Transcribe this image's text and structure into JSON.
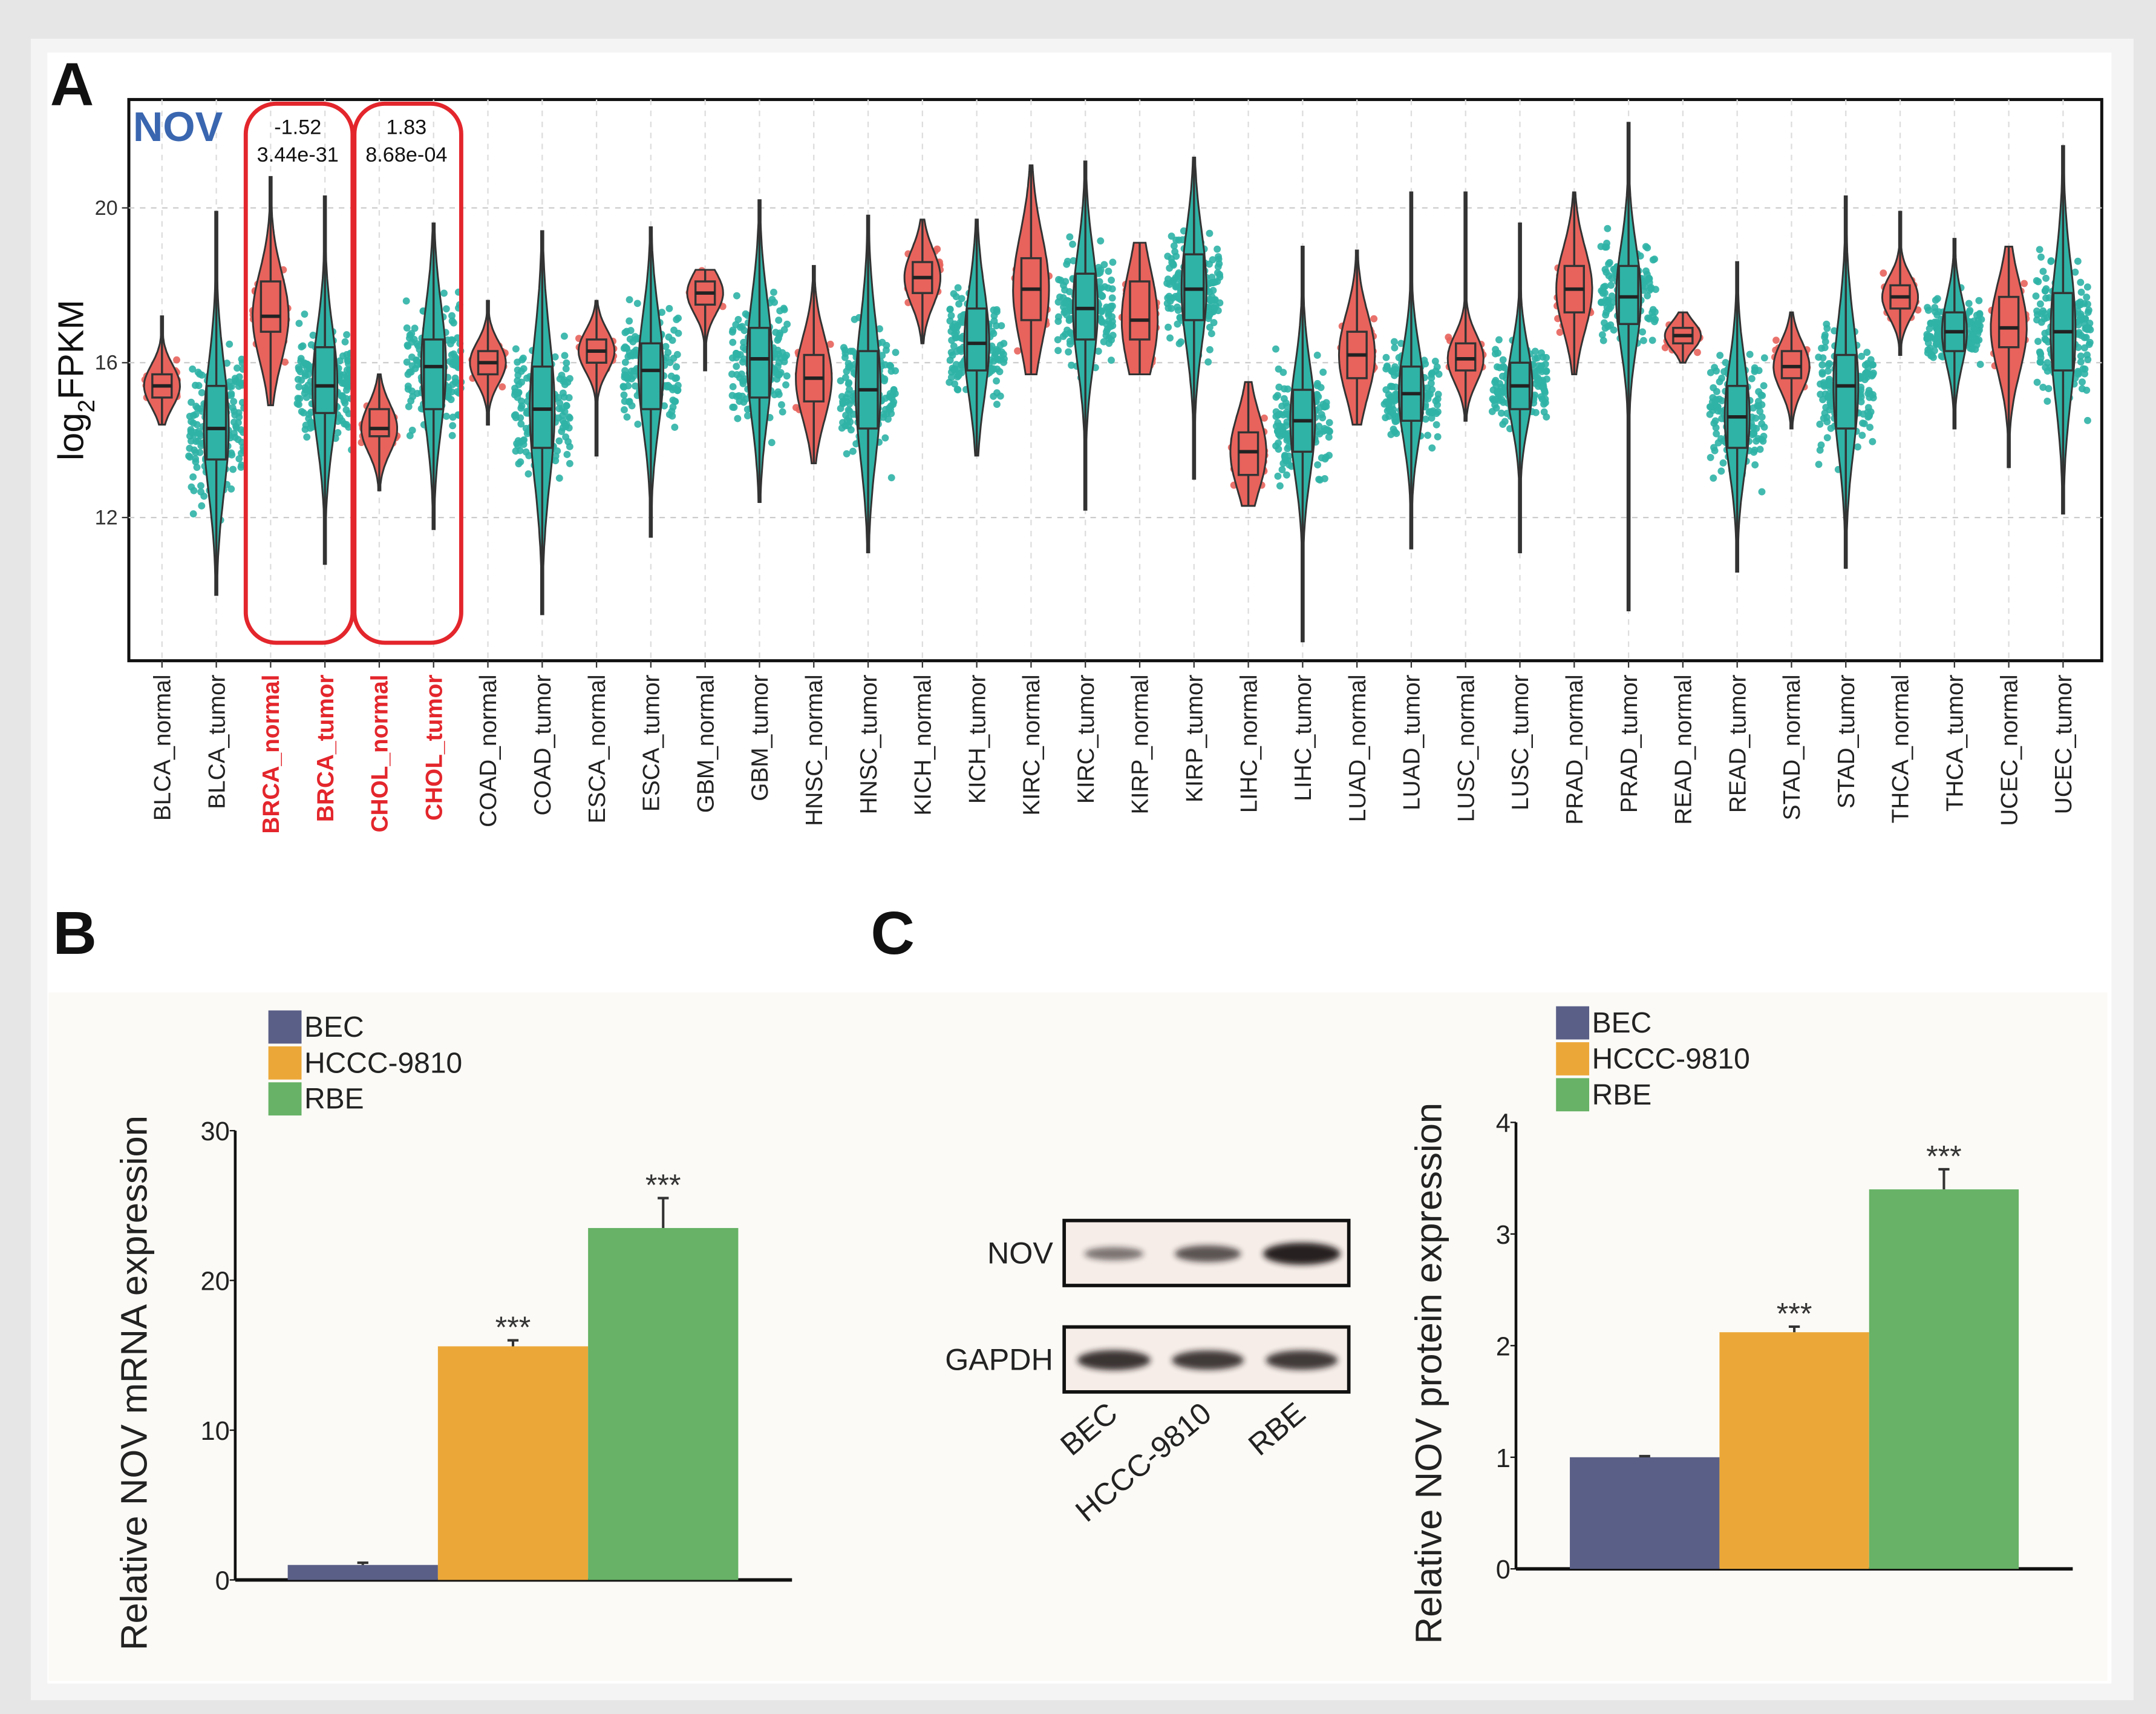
{
  "panels": {
    "a": "A",
    "b": "B",
    "c": "C"
  },
  "chart_data": [
    {
      "type": "violin",
      "title": "NOV",
      "ylabel": "log2FPKM",
      "ylabel_base": "log",
      "ylabel_sub": "2",
      "ylabel_rest": "FPKM",
      "ylim": [
        8.3,
        22.8
      ],
      "yticks": [
        12,
        16,
        20
      ],
      "grid": true,
      "colors": {
        "normal": "#e8635c",
        "tumor": "#2fb3a6",
        "highlight": "#e3262c",
        "title": "#3a66b0"
      },
      "annotations": [
        {
          "groups": [
            "BRCA_normal",
            "BRCA_tumor"
          ],
          "logfc": "-1.52",
          "pvalue": "3.44e-31"
        },
        {
          "groups": [
            "CHOL_normal",
            "CHOL_tumor"
          ],
          "logfc": "1.83",
          "pvalue": "8.68e-04"
        }
      ],
      "groups": [
        {
          "label": "BLCA_normal",
          "kind": "normal",
          "median": 15.4,
          "q1": 15.1,
          "q3": 15.7,
          "min": 14.4,
          "max": 17.2
        },
        {
          "label": "BLCA_tumor",
          "kind": "tumor",
          "median": 14.3,
          "q1": 13.5,
          "q3": 15.4,
          "min": 10.0,
          "max": 19.9
        },
        {
          "label": "BRCA_normal",
          "kind": "normal",
          "highlight": true,
          "median": 17.2,
          "q1": 16.8,
          "q3": 18.1,
          "min": 14.9,
          "max": 20.8
        },
        {
          "label": "BRCA_tumor",
          "kind": "tumor",
          "highlight": true,
          "median": 15.4,
          "q1": 14.7,
          "q3": 16.4,
          "min": 10.8,
          "max": 20.3
        },
        {
          "label": "CHOL_normal",
          "kind": "normal",
          "highlight": true,
          "median": 14.3,
          "q1": 14.1,
          "q3": 14.8,
          "min": 12.7,
          "max": 15.7
        },
        {
          "label": "CHOL_tumor",
          "kind": "tumor",
          "highlight": true,
          "median": 15.9,
          "q1": 14.8,
          "q3": 16.6,
          "min": 11.7,
          "max": 19.6
        },
        {
          "label": "COAD_normal",
          "kind": "normal",
          "median": 16.0,
          "q1": 15.7,
          "q3": 16.3,
          "min": 14.4,
          "max": 17.6
        },
        {
          "label": "COAD_tumor",
          "kind": "tumor",
          "median": 14.8,
          "q1": 13.8,
          "q3": 15.9,
          "min": 9.5,
          "max": 19.4
        },
        {
          "label": "ESCA_normal",
          "kind": "normal",
          "median": 16.3,
          "q1": 16.0,
          "q3": 16.6,
          "min": 13.6,
          "max": 17.6
        },
        {
          "label": "ESCA_tumor",
          "kind": "tumor",
          "median": 15.8,
          "q1": 14.8,
          "q3": 16.5,
          "min": 11.5,
          "max": 19.5
        },
        {
          "label": "GBM_normal",
          "kind": "normal",
          "median": 17.8,
          "q1": 17.5,
          "q3": 18.1,
          "min": 15.8,
          "max": 18.4
        },
        {
          "label": "GBM_tumor",
          "kind": "tumor",
          "median": 16.1,
          "q1": 15.1,
          "q3": 16.9,
          "min": 12.4,
          "max": 20.2
        },
        {
          "label": "HNSC_normal",
          "kind": "normal",
          "median": 15.6,
          "q1": 15.0,
          "q3": 16.2,
          "min": 13.4,
          "max": 18.5
        },
        {
          "label": "HNSC_tumor",
          "kind": "tumor",
          "median": 15.3,
          "q1": 14.3,
          "q3": 16.3,
          "min": 11.1,
          "max": 19.8
        },
        {
          "label": "KICH_normal",
          "kind": "normal",
          "median": 18.2,
          "q1": 17.8,
          "q3": 18.6,
          "min": 16.5,
          "max": 19.7
        },
        {
          "label": "KICH_tumor",
          "kind": "tumor",
          "median": 16.5,
          "q1": 15.8,
          "q3": 17.4,
          "min": 13.6,
          "max": 19.7
        },
        {
          "label": "KIRC_normal",
          "kind": "normal",
          "median": 17.9,
          "q1": 17.1,
          "q3": 18.7,
          "min": 15.7,
          "max": 21.1
        },
        {
          "label": "KIRC_tumor",
          "kind": "tumor",
          "median": 17.4,
          "q1": 16.6,
          "q3": 18.3,
          "min": 12.2,
          "max": 21.2
        },
        {
          "label": "KIRP_normal",
          "kind": "normal",
          "median": 17.1,
          "q1": 16.6,
          "q3": 18.1,
          "min": 15.7,
          "max": 19.1
        },
        {
          "label": "KIRP_tumor",
          "kind": "tumor",
          "median": 17.9,
          "q1": 17.1,
          "q3": 18.8,
          "min": 13.0,
          "max": 21.3
        },
        {
          "label": "LIHC_normal",
          "kind": "normal",
          "median": 13.7,
          "q1": 13.1,
          "q3": 14.2,
          "min": 12.3,
          "max": 15.5
        },
        {
          "label": "LIHC_tumor",
          "kind": "tumor",
          "median": 14.5,
          "q1": 13.7,
          "q3": 15.3,
          "min": 8.8,
          "max": 19.0
        },
        {
          "label": "LUAD_normal",
          "kind": "normal",
          "median": 16.2,
          "q1": 15.6,
          "q3": 16.8,
          "min": 14.4,
          "max": 18.9
        },
        {
          "label": "LUAD_tumor",
          "kind": "tumor",
          "median": 15.2,
          "q1": 14.5,
          "q3": 15.9,
          "min": 11.2,
          "max": 20.4
        },
        {
          "label": "LUSC_normal",
          "kind": "normal",
          "median": 16.1,
          "q1": 15.8,
          "q3": 16.5,
          "min": 14.5,
          "max": 20.4
        },
        {
          "label": "LUSC_tumor",
          "kind": "tumor",
          "median": 15.4,
          "q1": 14.8,
          "q3": 16.0,
          "min": 11.1,
          "max": 19.6
        },
        {
          "label": "PRAD_normal",
          "kind": "normal",
          "median": 17.9,
          "q1": 17.3,
          "q3": 18.5,
          "min": 15.7,
          "max": 20.4
        },
        {
          "label": "PRAD_tumor",
          "kind": "tumor",
          "median": 17.7,
          "q1": 17.0,
          "q3": 18.5,
          "min": 9.6,
          "max": 22.2
        },
        {
          "label": "READ_normal",
          "kind": "normal",
          "median": 16.7,
          "q1": 16.5,
          "q3": 16.9,
          "min": 16.0,
          "max": 17.3
        },
        {
          "label": "READ_tumor",
          "kind": "tumor",
          "median": 14.6,
          "q1": 13.8,
          "q3": 15.4,
          "min": 10.6,
          "max": 18.6
        },
        {
          "label": "STAD_normal",
          "kind": "normal",
          "median": 15.9,
          "q1": 15.6,
          "q3": 16.3,
          "min": 14.3,
          "max": 17.3
        },
        {
          "label": "STAD_tumor",
          "kind": "tumor",
          "median": 15.4,
          "q1": 14.3,
          "q3": 16.2,
          "min": 10.7,
          "max": 20.3
        },
        {
          "label": "THCA_normal",
          "kind": "normal",
          "median": 17.7,
          "q1": 17.4,
          "q3": 18.0,
          "min": 16.2,
          "max": 19.9
        },
        {
          "label": "THCA_tumor",
          "kind": "tumor",
          "median": 16.8,
          "q1": 16.3,
          "q3": 17.3,
          "min": 14.3,
          "max": 19.2
        },
        {
          "label": "UCEC_normal",
          "kind": "normal",
          "median": 16.9,
          "q1": 16.4,
          "q3": 17.7,
          "min": 13.3,
          "max": 19.0
        },
        {
          "label": "UCEC_tumor",
          "kind": "tumor",
          "median": 16.8,
          "q1": 15.8,
          "q3": 17.8,
          "min": 12.1,
          "max": 21.6
        }
      ]
    },
    {
      "type": "bar",
      "panel": "B",
      "ylabel": "Relative NOV mRNA expression",
      "ylim": [
        0,
        30
      ],
      "yticks": [
        "0",
        "10",
        "20",
        "30"
      ],
      "categories": [
        "BEC",
        "HCCC-9810",
        "RBE"
      ],
      "values": [
        1.0,
        15.6,
        23.5
      ],
      "errors": [
        0.15,
        0.4,
        2.0
      ],
      "significance": [
        "",
        "***",
        "***"
      ],
      "colors": [
        "#5a5f87",
        "#eba838",
        "#67b266"
      ],
      "legend": [
        "BEC",
        "HCCC-9810",
        "RBE"
      ],
      "legend_position": "top-left"
    },
    {
      "type": "bar",
      "panel": "C",
      "ylabel": "Relative NOV protein expression",
      "ylim": [
        0,
        4
      ],
      "yticks": [
        "0",
        "1",
        "2",
        "3",
        "4"
      ],
      "categories": [
        "BEC",
        "HCCC-9810",
        "RBE"
      ],
      "values": [
        1.0,
        2.12,
        3.4
      ],
      "errors": [
        0.01,
        0.05,
        0.18
      ],
      "significance": [
        "",
        "***",
        "***"
      ],
      "colors": [
        "#5a5f87",
        "#eba838",
        "#67b266"
      ],
      "legend": [
        "BEC",
        "HCCC-9810",
        "RBE"
      ],
      "legend_position": "top-left"
    }
  ],
  "western_blot": {
    "rows": [
      {
        "label": "NOV",
        "intensities": [
          0.35,
          0.6,
          1.0
        ]
      },
      {
        "label": "GAPDH",
        "intensities": [
          0.85,
          0.8,
          0.8
        ]
      }
    ],
    "lanes": [
      "BEC",
      "HCCC-9810",
      "RBE"
    ]
  }
}
